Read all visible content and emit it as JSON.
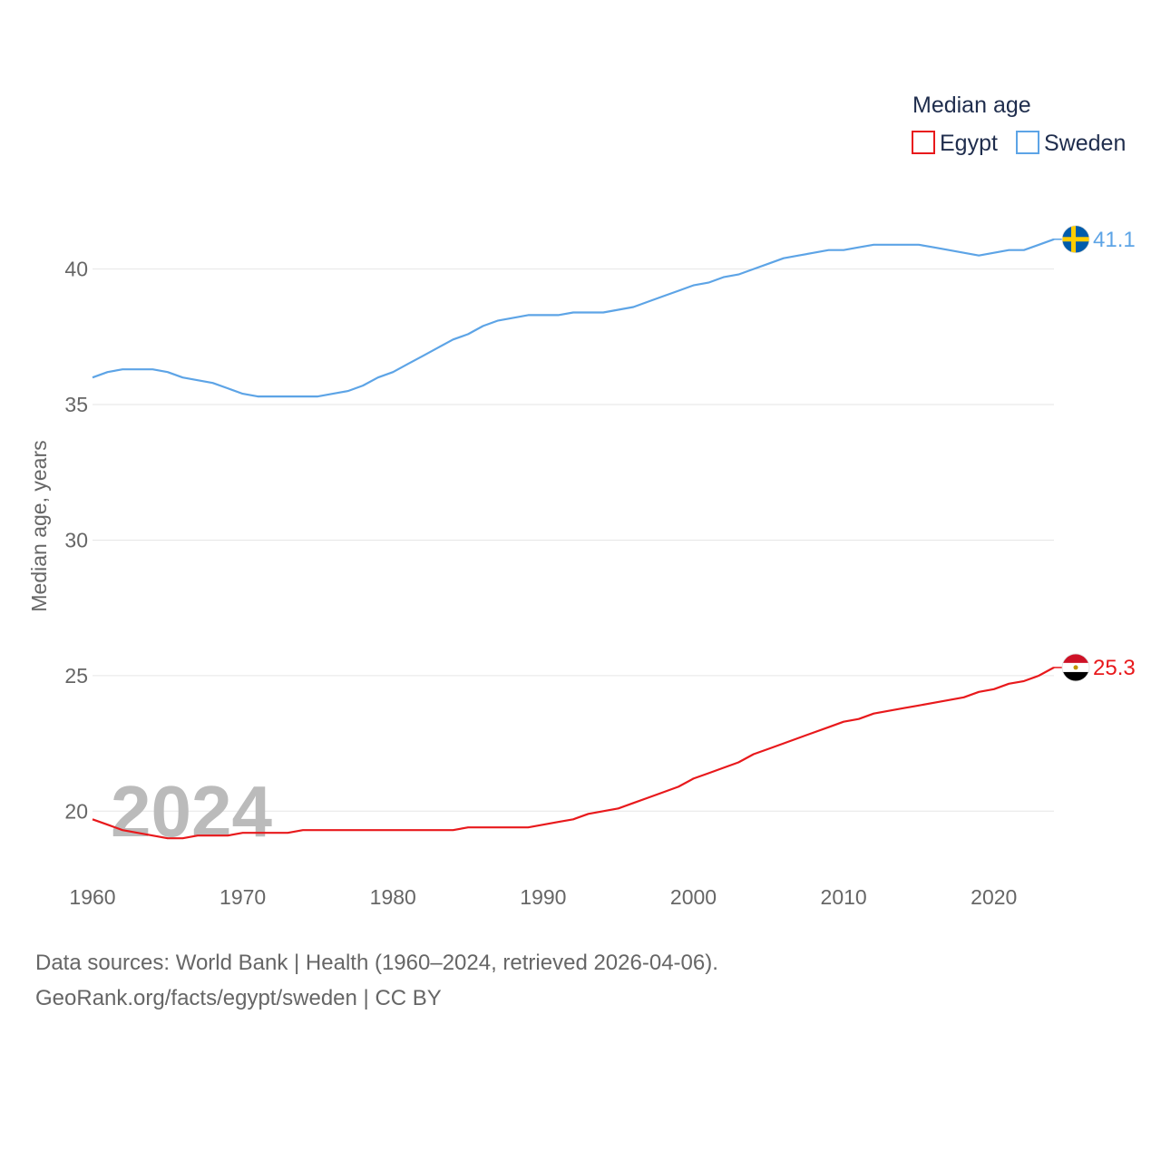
{
  "chart_data": {
    "type": "line",
    "legend_title": "Median age",
    "ylabel": "Median age, years",
    "xlim": [
      1960,
      2024
    ],
    "ylim": [
      17.5,
      43
    ],
    "x_ticks": [
      1960,
      1970,
      1980,
      1990,
      2000,
      2010,
      2020
    ],
    "y_ticks": [
      20,
      25,
      30,
      35,
      40
    ],
    "current_year_label": "2024",
    "x": [
      1960,
      1961,
      1962,
      1963,
      1964,
      1965,
      1966,
      1967,
      1968,
      1969,
      1970,
      1971,
      1972,
      1973,
      1974,
      1975,
      1976,
      1977,
      1978,
      1979,
      1980,
      1981,
      1982,
      1983,
      1984,
      1985,
      1986,
      1987,
      1988,
      1989,
      1990,
      1991,
      1992,
      1993,
      1994,
      1995,
      1996,
      1997,
      1998,
      1999,
      2000,
      2001,
      2002,
      2003,
      2004,
      2005,
      2006,
      2007,
      2008,
      2009,
      2010,
      2011,
      2012,
      2013,
      2014,
      2015,
      2016,
      2017,
      2018,
      2019,
      2020,
      2021,
      2022,
      2023,
      2024
    ],
    "series": [
      {
        "name": "Egypt",
        "color": "#e8191c",
        "flag": "egypt-flag",
        "end_label": "25.3",
        "values": [
          19.7,
          19.5,
          19.3,
          19.2,
          19.1,
          19.0,
          19.0,
          19.1,
          19.1,
          19.1,
          19.2,
          19.2,
          19.2,
          19.2,
          19.3,
          19.3,
          19.3,
          19.3,
          19.3,
          19.3,
          19.3,
          19.3,
          19.3,
          19.3,
          19.3,
          19.4,
          19.4,
          19.4,
          19.4,
          19.4,
          19.5,
          19.6,
          19.7,
          19.9,
          20.0,
          20.1,
          20.3,
          20.5,
          20.7,
          20.9,
          21.2,
          21.4,
          21.6,
          21.8,
          22.1,
          22.3,
          22.5,
          22.7,
          22.9,
          23.1,
          23.3,
          23.4,
          23.6,
          23.7,
          23.8,
          23.9,
          24.0,
          24.1,
          24.2,
          24.4,
          24.5,
          24.7,
          24.8,
          25.0,
          25.3
        ]
      },
      {
        "name": "Sweden",
        "color": "#5da4e6",
        "flag": "sweden-flag",
        "end_label": "41.1",
        "values": [
          36.0,
          36.2,
          36.3,
          36.3,
          36.3,
          36.2,
          36.0,
          35.9,
          35.8,
          35.6,
          35.4,
          35.3,
          35.3,
          35.3,
          35.3,
          35.3,
          35.4,
          35.5,
          35.7,
          36.0,
          36.2,
          36.5,
          36.8,
          37.1,
          37.4,
          37.6,
          37.9,
          38.1,
          38.2,
          38.3,
          38.3,
          38.3,
          38.4,
          38.4,
          38.4,
          38.5,
          38.6,
          38.8,
          39.0,
          39.2,
          39.4,
          39.5,
          39.7,
          39.8,
          40.0,
          40.2,
          40.4,
          40.5,
          40.6,
          40.7,
          40.7,
          40.8,
          40.9,
          40.9,
          40.9,
          40.9,
          40.8,
          40.7,
          40.6,
          40.5,
          40.6,
          40.7,
          40.7,
          40.9,
          41.1
        ]
      }
    ]
  },
  "footer": {
    "sources": "Data sources: World Bank | Health (1960–2024, retrieved 2026-04-06).",
    "attribution": "GeoRank.org/facts/egypt/sweden | CC BY"
  }
}
